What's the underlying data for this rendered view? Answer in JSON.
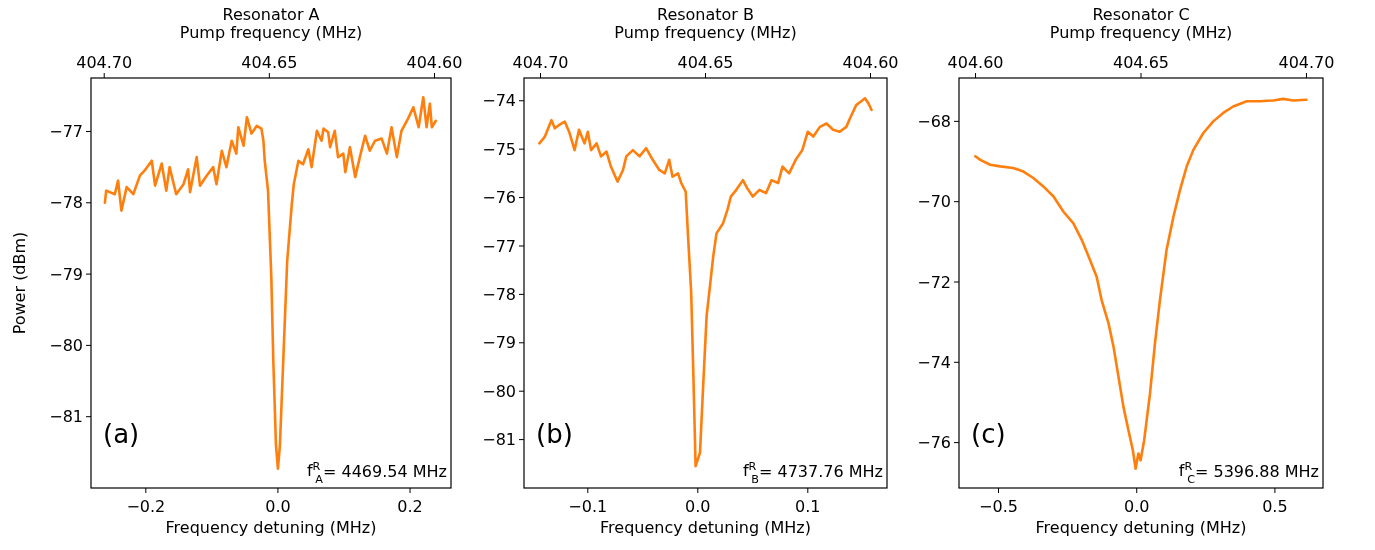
{
  "chart_data": [
    {
      "type": "line",
      "title": "Resonator A",
      "x2label": "Pump frequency (MHz)",
      "xlabel": "Frequency detuning (MHz)",
      "ylabel": "Power (dBm)",
      "annotations": [
        "(a)",
        "f$^{R}$$_{A}$= 4469.54 MHz"
      ],
      "xlim": [
        -0.283,
        0.262
      ],
      "xticks": [
        {
          "value": -0.2,
          "label": "−0.2"
        },
        {
          "value": 0,
          "label": "0.0"
        },
        {
          "value": 0.2,
          "label": "0.2"
        }
      ],
      "x2lim": [
        404.704,
        404.595
      ],
      "x2ticks": [
        {
          "value": 404.7,
          "label": "404.70"
        },
        {
          "value": 404.65,
          "label": "404.65"
        },
        {
          "value": 404.6,
          "label": "404.60"
        }
      ],
      "ylim": [
        -82.0,
        -76.25
      ],
      "yticks": [
        {
          "value": -81,
          "label": "−81"
        },
        {
          "value": -80,
          "label": "−80"
        },
        {
          "value": -79,
          "label": "−79"
        },
        {
          "value": -78,
          "label": "−78"
        },
        {
          "value": -77,
          "label": "−77"
        }
      ],
      "x": [
        -0.262,
        -0.26,
        -0.247,
        -0.242,
        -0.237,
        -0.229,
        -0.219,
        -0.209,
        -0.202,
        -0.191,
        -0.186,
        -0.176,
        -0.169,
        -0.164,
        -0.154,
        -0.143,
        -0.136,
        -0.133,
        -0.123,
        -0.118,
        -0.108,
        -0.098,
        -0.093,
        -0.085,
        -0.078,
        -0.07,
        -0.063,
        -0.06,
        -0.052,
        -0.047,
        -0.04,
        -0.032,
        -0.025,
        -0.022,
        -0.02,
        -0.015,
        -0.01,
        -0.007,
        -0.003,
        0,
        0.003,
        0.008,
        0.014,
        0.021,
        0.024,
        0.031,
        0.038,
        0.046,
        0.051,
        0.059,
        0.066,
        0.069,
        0.076,
        0.079,
        0.086,
        0.091,
        0.099,
        0.102,
        0.109,
        0.117,
        0.124,
        0.132,
        0.139,
        0.147,
        0.157,
        0.165,
        0.172,
        0.18,
        0.187,
        0.197,
        0.205,
        0.213,
        0.22,
        0.225,
        0.23,
        0.233,
        0.239
      ],
      "series": [
        {
          "color": "#ff7f0e",
          "values": [
            -78.0,
            -77.83,
            -77.88,
            -77.69,
            -78.11,
            -77.78,
            -77.88,
            -77.62,
            -77.55,
            -77.41,
            -77.76,
            -77.45,
            -77.83,
            -77.5,
            -77.88,
            -77.74,
            -77.53,
            -77.85,
            -77.36,
            -77.76,
            -77.62,
            -77.5,
            -77.74,
            -77.27,
            -77.5,
            -77.13,
            -77.31,
            -76.94,
            -77.2,
            -76.8,
            -77.03,
            -76.92,
            -76.96,
            -77.13,
            -77.41,
            -77.83,
            -79.05,
            -80.22,
            -81.4,
            -81.73,
            -81.4,
            -80.22,
            -78.82,
            -78.02,
            -77.74,
            -77.41,
            -77.46,
            -77.25,
            -77.5,
            -76.99,
            -77.13,
            -76.96,
            -77.01,
            -77.22,
            -76.99,
            -77.36,
            -77.31,
            -77.57,
            -77.22,
            -77.64,
            -77.36,
            -77.06,
            -77.27,
            -77.13,
            -77.1,
            -77.31,
            -76.94,
            -77.36,
            -76.99,
            -76.82,
            -76.66,
            -76.94,
            -76.52,
            -76.94,
            -76.61,
            -76.94,
            -76.85
          ]
        }
      ]
    },
    {
      "type": "line",
      "title": "Resonator B",
      "x2label": "Pump frequency (MHz)",
      "xlabel": "Frequency detuning (MHz)",
      "annotations": [
        "(b)",
        "f$^{R}$$_{B}$= 4737.76 MHz"
      ],
      "xlim": [
        -0.158,
        0.172
      ],
      "xticks": [
        {
          "value": -0.1,
          "label": "−0.1"
        },
        {
          "value": 0,
          "label": "0.0"
        },
        {
          "value": 0.1,
          "label": "0.1"
        }
      ],
      "x2lim": [
        404.705,
        404.595
      ],
      "x2ticks": [
        {
          "value": 404.7,
          "label": "404.70"
        },
        {
          "value": 404.65,
          "label": "404.65"
        },
        {
          "value": 404.6,
          "label": "404.60"
        }
      ],
      "ylim": [
        -82.0,
        -73.53
      ],
      "yticks": [
        {
          "value": -81,
          "label": "−81"
        },
        {
          "value": -80,
          "label": "−80"
        },
        {
          "value": -79,
          "label": "−79"
        },
        {
          "value": -78,
          "label": "−78"
        },
        {
          "value": -77,
          "label": "−77"
        },
        {
          "value": -76,
          "label": "−76"
        },
        {
          "value": -75,
          "label": "−75"
        },
        {
          "value": -74,
          "label": "−74"
        }
      ],
      "x": [
        -0.144,
        -0.139,
        -0.136,
        -0.133,
        -0.13,
        -0.126,
        -0.121,
        -0.117,
        -0.112,
        -0.108,
        -0.103,
        -0.1,
        -0.097,
        -0.092,
        -0.088,
        -0.083,
        -0.079,
        -0.073,
        -0.068,
        -0.065,
        -0.059,
        -0.053,
        -0.047,
        -0.041,
        -0.035,
        -0.03,
        -0.026,
        -0.023,
        -0.018,
        -0.015,
        -0.011,
        -0.009,
        -0.006,
        -0.004,
        -0.002,
        0.002,
        0.005,
        0.008,
        0.011,
        0.014,
        0.017,
        0.023,
        0.027,
        0.03,
        0.035,
        0.041,
        0.045,
        0.05,
        0.056,
        0.062,
        0.067,
        0.073,
        0.077,
        0.083,
        0.089,
        0.095,
        0.1,
        0.105,
        0.111,
        0.117,
        0.123,
        0.129,
        0.135,
        0.139,
        0.144,
        0.148,
        0.152,
        0.155,
        0.158
      ],
      "series": [
        {
          "color": "#ff7f0e",
          "values": [
            -74.88,
            -74.74,
            -74.57,
            -74.4,
            -74.57,
            -74.5,
            -74.43,
            -74.64,
            -75.02,
            -74.6,
            -74.88,
            -74.64,
            -75.02,
            -74.88,
            -75.15,
            -75.05,
            -75.36,
            -75.67,
            -75.43,
            -75.15,
            -75.02,
            -75.15,
            -74.98,
            -75.22,
            -75.43,
            -75.5,
            -75.22,
            -75.57,
            -75.5,
            -75.7,
            -75.88,
            -76.74,
            -77.97,
            -79.69,
            -81.55,
            -81.27,
            -79.83,
            -78.45,
            -77.84,
            -77.22,
            -76.74,
            -76.53,
            -76.25,
            -75.98,
            -75.84,
            -75.64,
            -75.81,
            -75.98,
            -75.84,
            -75.91,
            -75.64,
            -75.7,
            -75.36,
            -75.5,
            -75.22,
            -75.02,
            -74.64,
            -74.74,
            -74.54,
            -74.47,
            -74.6,
            -74.64,
            -74.54,
            -74.33,
            -74.09,
            -74.02,
            -73.95,
            -74.05,
            -74.19
          ]
        }
      ]
    },
    {
      "type": "line",
      "title": "Resonator C",
      "x2label": "Pump frequency (MHz)",
      "xlabel": "Frequency detuning (MHz)",
      "annotations": [
        "(c)",
        "f$^{R}$$_{C}$= 5396.88 MHz"
      ],
      "xlim": [
        -0.643,
        0.674
      ],
      "xticks": [
        {
          "value": -0.5,
          "label": "−0.5"
        },
        {
          "value": 0,
          "label": "0.0"
        },
        {
          "value": 0.5,
          "label": "0.5"
        }
      ],
      "x2lim": [
        404.595,
        404.705
      ],
      "x2ticks": [
        {
          "value": 404.6,
          "label": "404.60"
        },
        {
          "value": 404.65,
          "label": "404.65"
        },
        {
          "value": 404.7,
          "label": "404.70"
        }
      ],
      "ylim": [
        -77.13,
        -66.92
      ],
      "yticks": [
        {
          "value": -76,
          "label": "−76"
        },
        {
          "value": -74,
          "label": "−74"
        },
        {
          "value": -72,
          "label": "−72"
        },
        {
          "value": -70,
          "label": "−70"
        },
        {
          "value": -68,
          "label": "−68"
        }
      ],
      "x": [
        -0.584,
        -0.566,
        -0.53,
        -0.494,
        -0.447,
        -0.41,
        -0.374,
        -0.338,
        -0.301,
        -0.265,
        -0.229,
        -0.199,
        -0.169,
        -0.145,
        -0.127,
        -0.102,
        -0.084,
        -0.066,
        -0.048,
        -0.03,
        -0.014,
        -0.004,
        0.006,
        0.014,
        0.027,
        0.048,
        0.066,
        0.084,
        0.108,
        0.133,
        0.157,
        0.181,
        0.205,
        0.241,
        0.277,
        0.313,
        0.349,
        0.398,
        0.446,
        0.494,
        0.53,
        0.566,
        0.614
      ],
      "series": [
        {
          "color": "#ff7f0e",
          "values": [
            -68.87,
            -68.96,
            -69.08,
            -69.12,
            -69.16,
            -69.25,
            -69.41,
            -69.62,
            -69.87,
            -70.25,
            -70.54,
            -70.95,
            -71.45,
            -71.87,
            -72.45,
            -73.03,
            -73.61,
            -74.36,
            -75.11,
            -75.69,
            -76.19,
            -76.65,
            -76.27,
            -76.44,
            -75.94,
            -74.78,
            -73.53,
            -72.45,
            -71.2,
            -70.37,
            -69.7,
            -69.12,
            -68.71,
            -68.29,
            -68.0,
            -67.79,
            -67.63,
            -67.5,
            -67.5,
            -67.48,
            -67.44,
            -67.48,
            -67.46
          ]
        }
      ]
    }
  ]
}
